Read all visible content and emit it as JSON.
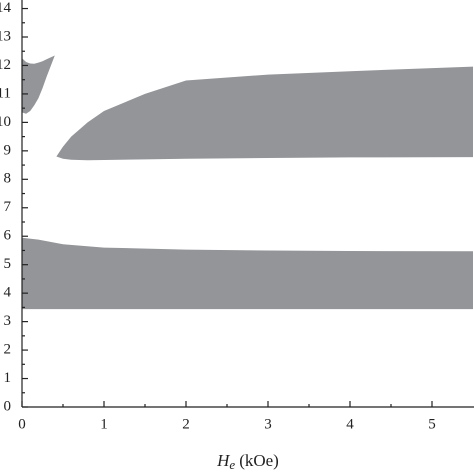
{
  "chart_data": {
    "type": "band",
    "xlabel": {
      "symbol": "H",
      "subscript": "e",
      "unit": "(kOe)"
    },
    "xlim": [
      0,
      5.5
    ],
    "ylim": [
      0,
      14.3
    ],
    "xticks": [
      0,
      1,
      2,
      3,
      4,
      5
    ],
    "yticks": [
      0,
      1,
      2,
      3,
      4,
      5,
      6,
      7,
      8,
      9,
      10,
      11,
      12,
      13,
      14
    ],
    "color": "#939598",
    "series": [
      {
        "x": [
          0,
          0.2,
          0.5,
          1,
          2,
          3,
          4,
          5.5
        ],
        "upper": [
          5.95,
          5.88,
          5.72,
          5.6,
          5.53,
          5.5,
          5.48,
          5.47
        ],
        "lower": [
          3.44,
          3.44,
          3.44,
          3.44,
          3.44,
          3.44,
          3.44,
          3.44
        ]
      },
      {
        "x": [
          0.42,
          0.5,
          0.6,
          0.8,
          1,
          1.5,
          2,
          3,
          4,
          5.5
        ],
        "upper": [
          8.8,
          9.15,
          9.5,
          10.0,
          10.4,
          11.0,
          11.47,
          11.68,
          11.8,
          11.96
        ],
        "lower": [
          8.8,
          8.72,
          8.69,
          8.67,
          8.68,
          8.7,
          8.72,
          8.75,
          8.77,
          8.78
        ]
      },
      {
        "x": [
          0,
          0.05,
          0.1,
          0.15,
          0.2,
          0.25,
          0.3,
          0.4
        ],
        "upper": [
          12.25,
          12.12,
          12.07,
          12.06,
          12.1,
          12.15,
          12.22,
          12.35
        ],
        "lower": [
          10.35,
          10.3,
          10.4,
          10.6,
          10.85,
          11.2,
          11.6,
          12.35
        ]
      }
    ]
  }
}
